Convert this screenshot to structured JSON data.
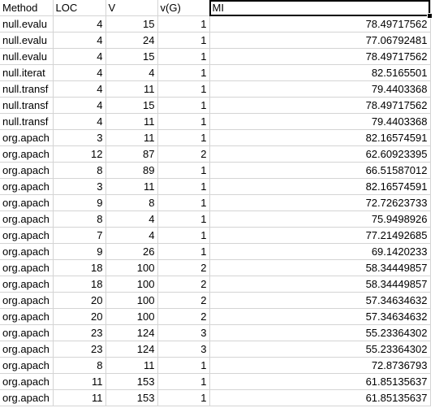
{
  "spreadsheet": {
    "headers": [
      "Method",
      "LOC",
      "V",
      "v(G)",
      "MI"
    ],
    "selected_cell": "MI",
    "rows": [
      {
        "method": "null.evalu",
        "loc": "4",
        "v": "15",
        "vg": "1",
        "mi": "78.49717562"
      },
      {
        "method": "null.evalu",
        "loc": "4",
        "v": "24",
        "vg": "1",
        "mi": "77.06792481"
      },
      {
        "method": "null.evalu",
        "loc": "4",
        "v": "15",
        "vg": "1",
        "mi": "78.49717562"
      },
      {
        "method": "null.iterat",
        "loc": "4",
        "v": "4",
        "vg": "1",
        "mi": "82.5165501"
      },
      {
        "method": "null.transf",
        "loc": "4",
        "v": "11",
        "vg": "1",
        "mi": "79.4403368"
      },
      {
        "method": "null.transf",
        "loc": "4",
        "v": "15",
        "vg": "1",
        "mi": "78.49717562"
      },
      {
        "method": "null.transf",
        "loc": "4",
        "v": "11",
        "vg": "1",
        "mi": "79.4403368"
      },
      {
        "method": "org.apach",
        "loc": "3",
        "v": "11",
        "vg": "1",
        "mi": "82.16574591"
      },
      {
        "method": "org.apach",
        "loc": "12",
        "v": "87",
        "vg": "2",
        "mi": "62.60923395"
      },
      {
        "method": "org.apach",
        "loc": "8",
        "v": "89",
        "vg": "1",
        "mi": "66.51587012"
      },
      {
        "method": "org.apach",
        "loc": "3",
        "v": "11",
        "vg": "1",
        "mi": "82.16574591"
      },
      {
        "method": "org.apach",
        "loc": "9",
        "v": "8",
        "vg": "1",
        "mi": "72.72623733"
      },
      {
        "method": "org.apach",
        "loc": "8",
        "v": "4",
        "vg": "1",
        "mi": "75.9498926"
      },
      {
        "method": "org.apach",
        "loc": "7",
        "v": "4",
        "vg": "1",
        "mi": "77.21492685"
      },
      {
        "method": "org.apach",
        "loc": "9",
        "v": "26",
        "vg": "1",
        "mi": "69.1420233"
      },
      {
        "method": "org.apach",
        "loc": "18",
        "v": "100",
        "vg": "2",
        "mi": "58.34449857"
      },
      {
        "method": "org.apach",
        "loc": "18",
        "v": "100",
        "vg": "2",
        "mi": "58.34449857"
      },
      {
        "method": "org.apach",
        "loc": "20",
        "v": "100",
        "vg": "2",
        "mi": "57.34634632"
      },
      {
        "method": "org.apach",
        "loc": "20",
        "v": "100",
        "vg": "2",
        "mi": "57.34634632"
      },
      {
        "method": "org.apach",
        "loc": "23",
        "v": "124",
        "vg": "3",
        "mi": "55.23364302"
      },
      {
        "method": "org.apach",
        "loc": "23",
        "v": "124",
        "vg": "3",
        "mi": "55.23364302"
      },
      {
        "method": "org.apach",
        "loc": "8",
        "v": "11",
        "vg": "1",
        "mi": "72.8736793"
      },
      {
        "method": "org.apach",
        "loc": "11",
        "v": "153",
        "vg": "1",
        "mi": "61.85135637"
      },
      {
        "method": "org.apach",
        "loc": "11",
        "v": "153",
        "vg": "1",
        "mi": "61.85135637"
      }
    ]
  }
}
